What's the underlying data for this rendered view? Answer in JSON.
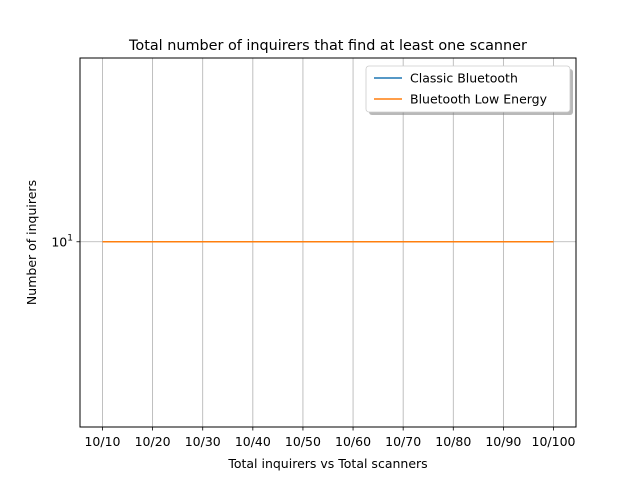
{
  "chart_data": {
    "type": "line",
    "title": "Total number of inquirers that find at least one scanner",
    "xlabel": "Total inquirers vs Total scanners",
    "ylabel": "Number of inquirers",
    "categories": [
      "10/10",
      "10/20",
      "10/30",
      "10/40",
      "10/50",
      "10/60",
      "10/70",
      "10/80",
      "10/90",
      "10/100"
    ],
    "y_scale": "log",
    "y_ticks": [
      {
        "value": 10,
        "base": "10",
        "exponent": "1"
      }
    ],
    "ylim": [
      1.7,
      58
    ],
    "grid": true,
    "legend_position": "top-right",
    "series": [
      {
        "name": "Classic Bluetooth",
        "color": "#1f77b4",
        "values": [
          10,
          10,
          10,
          10,
          10,
          10,
          10,
          10,
          10,
          10
        ]
      },
      {
        "name": "Bluetooth Low Energy",
        "color": "#ff7f0e",
        "values": [
          10,
          10,
          10,
          10,
          10,
          10,
          10,
          10,
          10,
          10
        ]
      }
    ]
  }
}
